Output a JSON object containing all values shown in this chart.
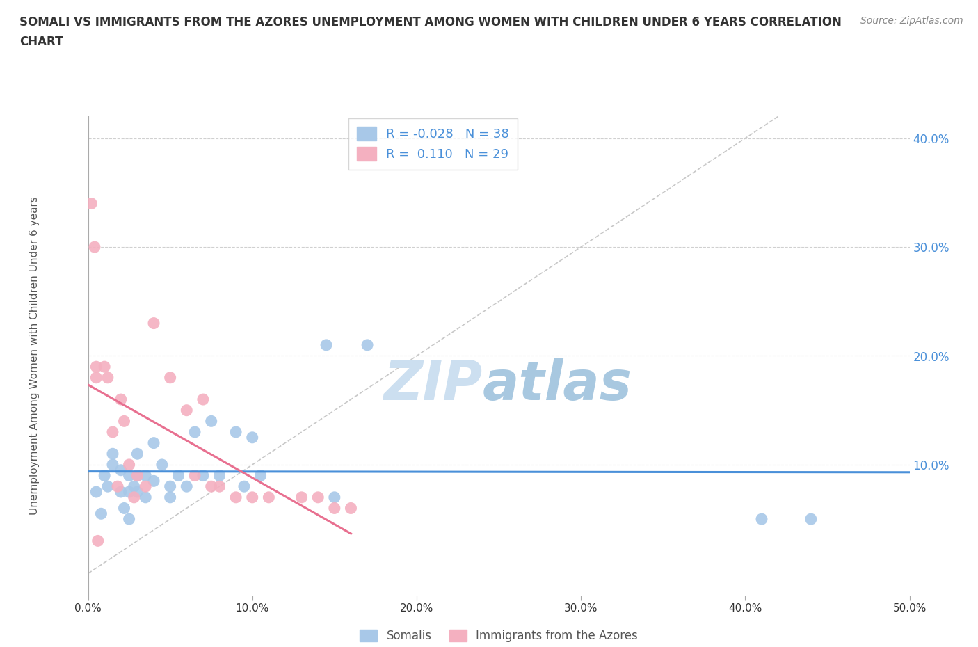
{
  "title_line1": "SOMALI VS IMMIGRANTS FROM THE AZORES UNEMPLOYMENT AMONG WOMEN WITH CHILDREN UNDER 6 YEARS CORRELATION",
  "title_line2": "CHART",
  "source": "Source: ZipAtlas.com",
  "ylabel": "Unemployment Among Women with Children Under 6 years",
  "xmin": 0.0,
  "xmax": 50.0,
  "ymin": -2.0,
  "ymax": 42.0,
  "xticks": [
    0.0,
    10.0,
    20.0,
    30.0,
    40.0,
    50.0
  ],
  "xticklabels": [
    "0.0%",
    "10.0%",
    "20.0%",
    "30.0%",
    "40.0%",
    "50.0%"
  ],
  "yticks_right": [
    10.0,
    20.0,
    30.0,
    40.0
  ],
  "yticks_right_labels": [
    "10.0%",
    "20.0%",
    "30.0%",
    "40.0%"
  ],
  "somali_color": "#a8c8e8",
  "azores_color": "#f4b0c0",
  "somali_line_color": "#4a90d9",
  "azores_line_color": "#e87090",
  "diagonal_color": "#c8c8c8",
  "grid_color": "#d0d0d0",
  "background_color": "#ffffff",
  "R_somali": "-0.028",
  "N_somali": "38",
  "R_azores": "0.110",
  "N_azores": "29",
  "somali_x": [
    0.5,
    0.8,
    1.0,
    1.2,
    1.5,
    1.5,
    2.0,
    2.0,
    2.2,
    2.5,
    2.5,
    2.5,
    2.8,
    3.0,
    3.0,
    3.0,
    3.5,
    3.5,
    4.0,
    4.0,
    4.5,
    5.0,
    5.0,
    5.5,
    6.0,
    6.5,
    7.0,
    7.5,
    8.0,
    9.0,
    9.5,
    10.0,
    10.5,
    14.5,
    15.0,
    17.0,
    41.0,
    44.0
  ],
  "somali_y": [
    7.5,
    5.5,
    9.0,
    8.0,
    10.0,
    11.0,
    9.5,
    7.5,
    6.0,
    5.0,
    7.5,
    9.0,
    8.0,
    7.5,
    9.0,
    11.0,
    9.0,
    7.0,
    8.5,
    12.0,
    10.0,
    8.0,
    7.0,
    9.0,
    8.0,
    13.0,
    9.0,
    14.0,
    9.0,
    13.0,
    8.0,
    12.5,
    9.0,
    21.0,
    7.0,
    21.0,
    5.0,
    5.0
  ],
  "azores_x": [
    0.2,
    0.4,
    0.5,
    0.5,
    0.6,
    1.0,
    1.2,
    1.5,
    1.8,
    2.0,
    2.2,
    2.5,
    2.8,
    3.0,
    3.5,
    4.0,
    5.0,
    6.0,
    6.5,
    7.0,
    7.5,
    8.0,
    9.0,
    10.0,
    11.0,
    13.0,
    14.0,
    15.0,
    16.0
  ],
  "azores_y": [
    34.0,
    30.0,
    19.0,
    18.0,
    3.0,
    19.0,
    18.0,
    13.0,
    8.0,
    16.0,
    14.0,
    10.0,
    7.0,
    9.0,
    8.0,
    23.0,
    18.0,
    15.0,
    9.0,
    16.0,
    8.0,
    8.0,
    7.0,
    7.0,
    7.0,
    7.0,
    7.0,
    6.0,
    6.0
  ]
}
